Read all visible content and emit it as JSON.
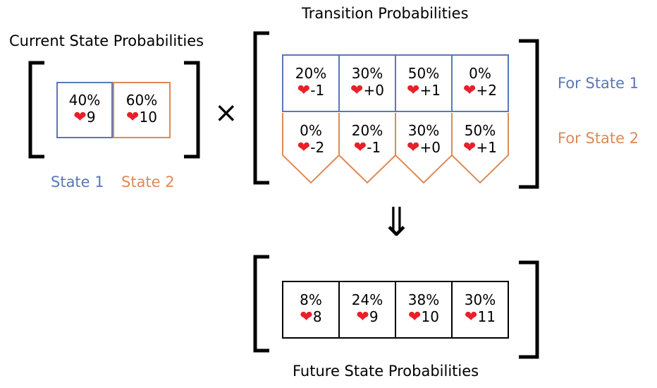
{
  "colors": {
    "state1": "#5a78b5",
    "state2": "#dd8a55",
    "heart": "#e8202a",
    "bracket": "#000000"
  },
  "current": {
    "title": "Current State Probabilities",
    "cells": [
      {
        "pct": "40%",
        "value": "9"
      },
      {
        "pct": "60%",
        "value": "10"
      }
    ],
    "labels": [
      "State 1",
      "State 2"
    ]
  },
  "operator": "×",
  "transition": {
    "title": "Transition Probabilities",
    "state1_cells": [
      {
        "pct": "20%",
        "value": "-1"
      },
      {
        "pct": "30%",
        "value": "+0"
      },
      {
        "pct": "50%",
        "value": "+1"
      },
      {
        "pct": "0%",
        "value": "+2"
      }
    ],
    "state2_cells": [
      {
        "pct": "0%",
        "value": "-2"
      },
      {
        "pct": "20%",
        "value": "-1"
      },
      {
        "pct": "30%",
        "value": "+0"
      },
      {
        "pct": "50%",
        "value": "+1"
      }
    ],
    "label_state1": "For State 1",
    "label_state2": "For State 2"
  },
  "implies": "⇓",
  "future": {
    "title": "Future State Probabilities",
    "cells": [
      {
        "pct": "8%",
        "value": "8"
      },
      {
        "pct": "24%",
        "value": "9"
      },
      {
        "pct": "38%",
        "value": "10"
      },
      {
        "pct": "30%",
        "value": "11"
      }
    ]
  },
  "heart_glyph": "❤"
}
